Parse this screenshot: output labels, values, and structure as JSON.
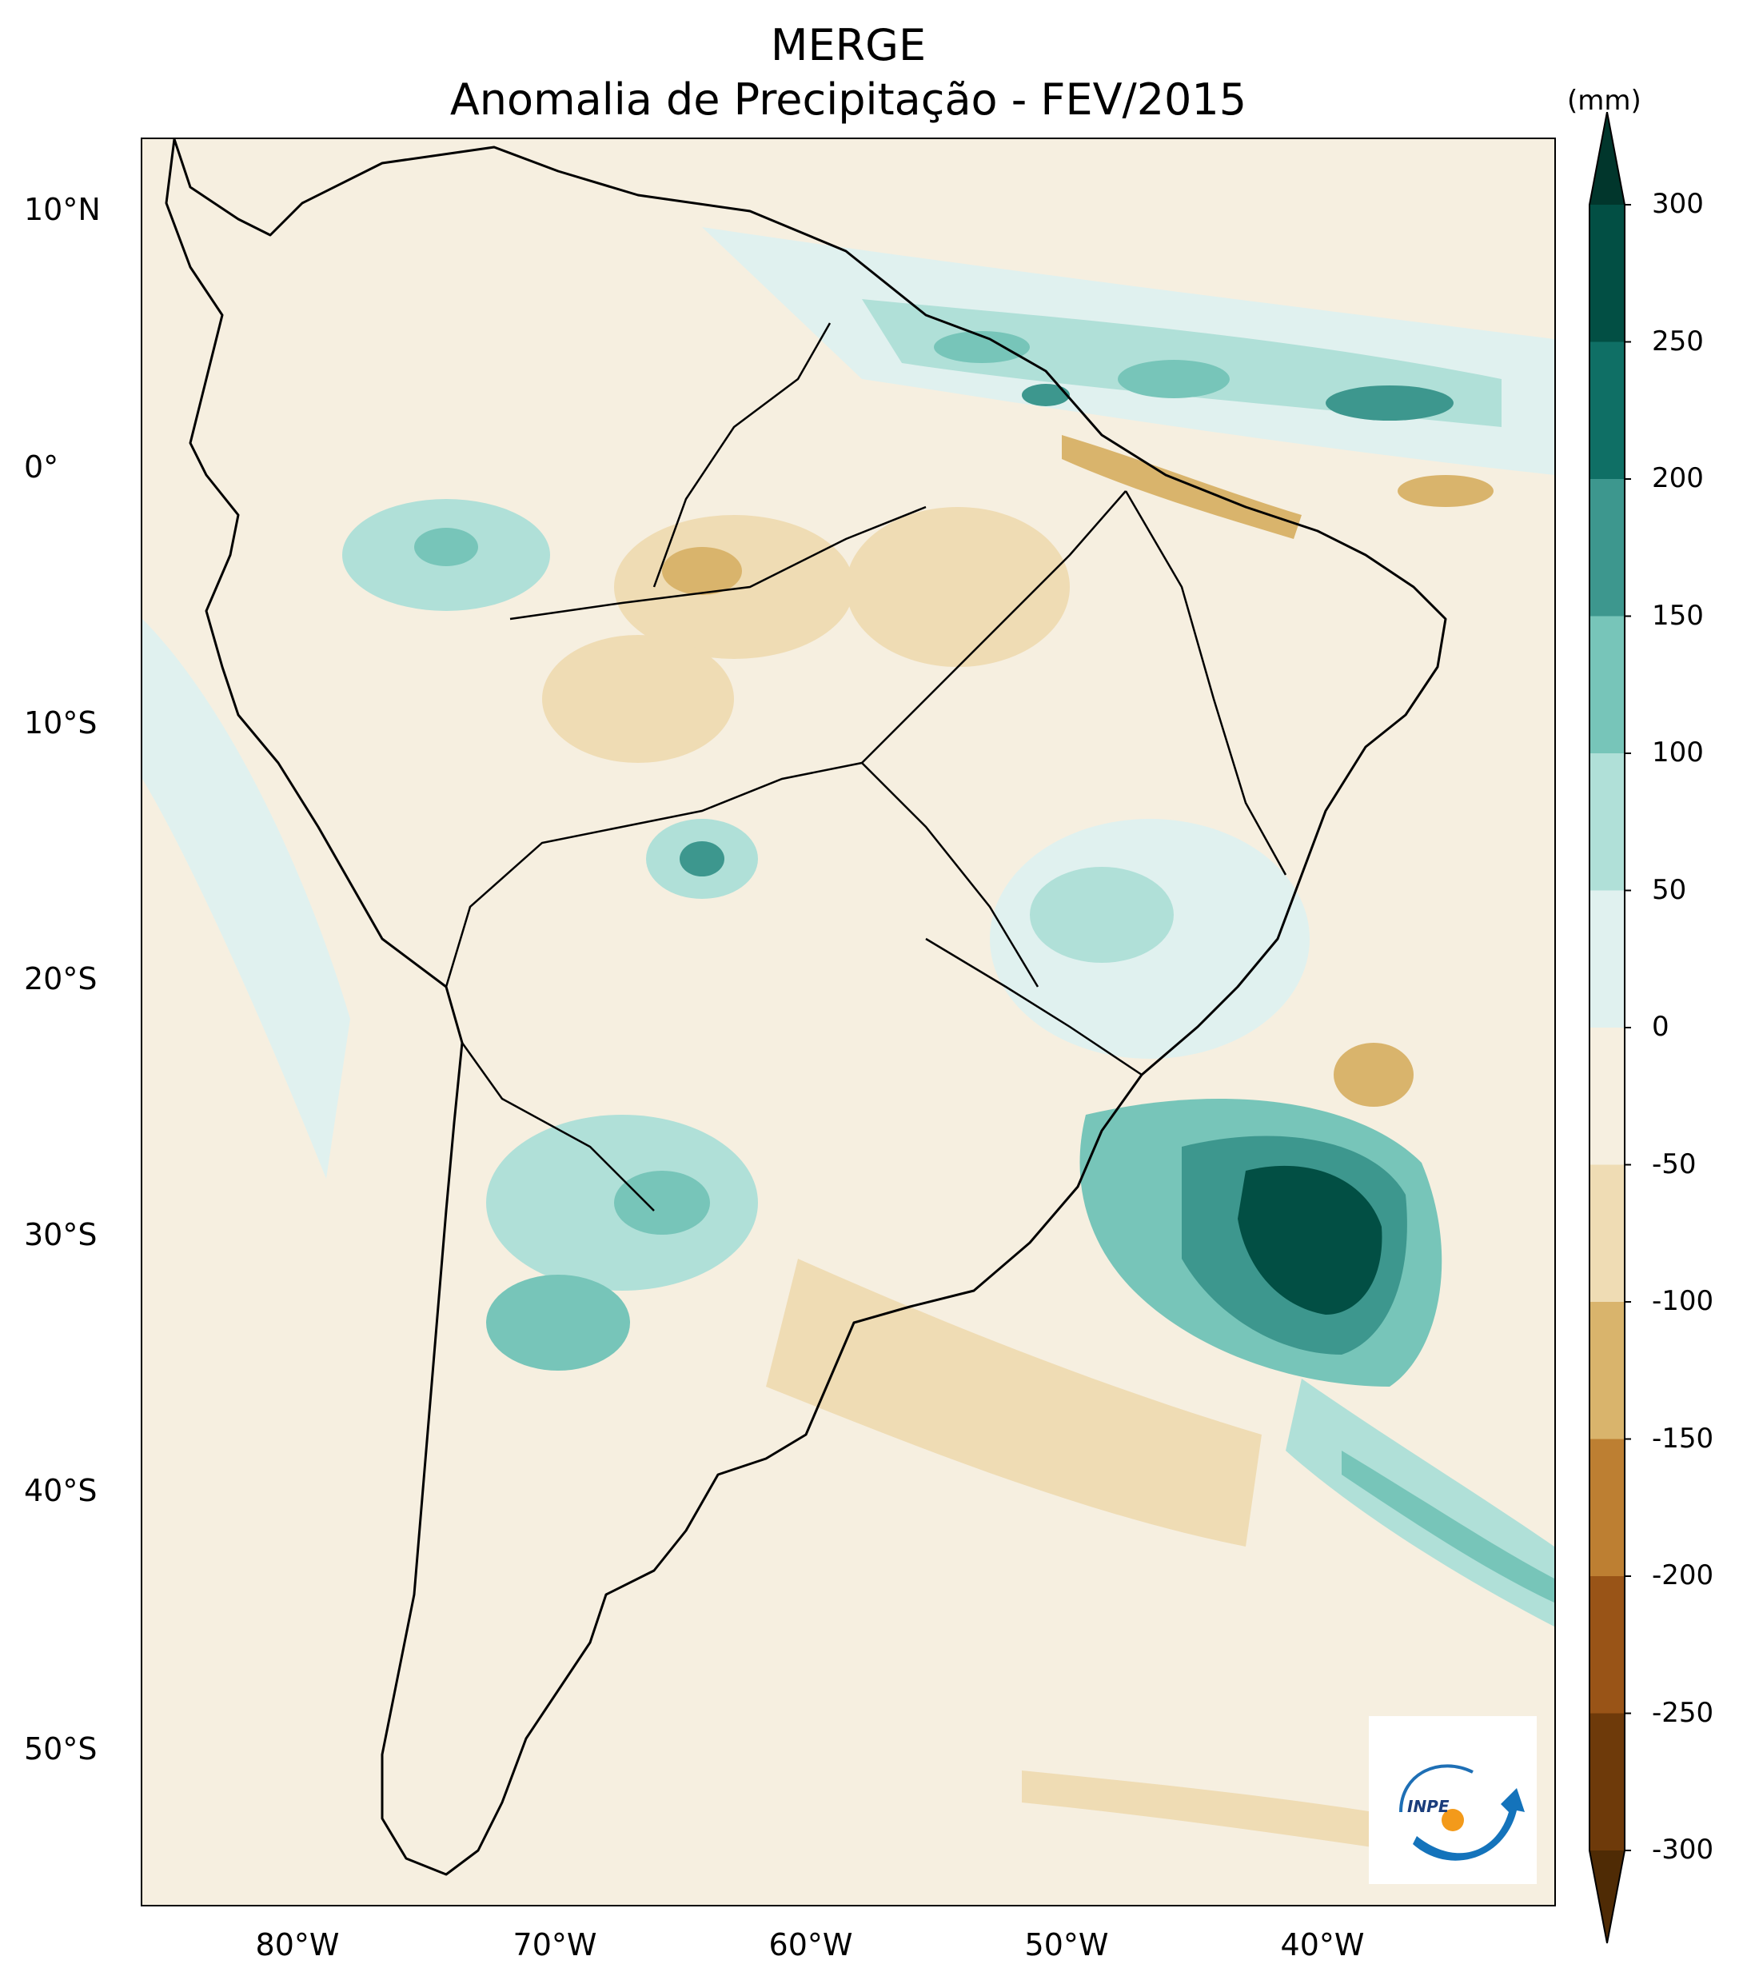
{
  "title": "MERGE",
  "subtitle": "Anomalia de Precipitação - FEV/2015",
  "map": {
    "region": "South America",
    "lat_labels": [
      "10°N",
      "0°",
      "10°S",
      "20°S",
      "30°S",
      "40°S",
      "50°S"
    ],
    "lon_labels": [
      "80°W",
      "70°W",
      "60°W",
      "50°W",
      "40°W"
    ],
    "logo_text": "INPE"
  },
  "colorbar": {
    "unit": "(mm)",
    "ticks": [
      "300",
      "250",
      "200",
      "150",
      "100",
      "50",
      "0",
      "-50",
      "-100",
      "-150",
      "-200",
      "-250",
      "-300"
    ],
    "colors": [
      "#01362c",
      "#024f44",
      "#0f6f65",
      "#3d978e",
      "#77c5b9",
      "#b0e0d8",
      "#e0f1ef",
      "#f6efe0",
      "#efdcb4",
      "#d9b46c",
      "#bd7f32",
      "#995417",
      "#6e3a0a",
      "#4f2b05"
    ]
  }
}
